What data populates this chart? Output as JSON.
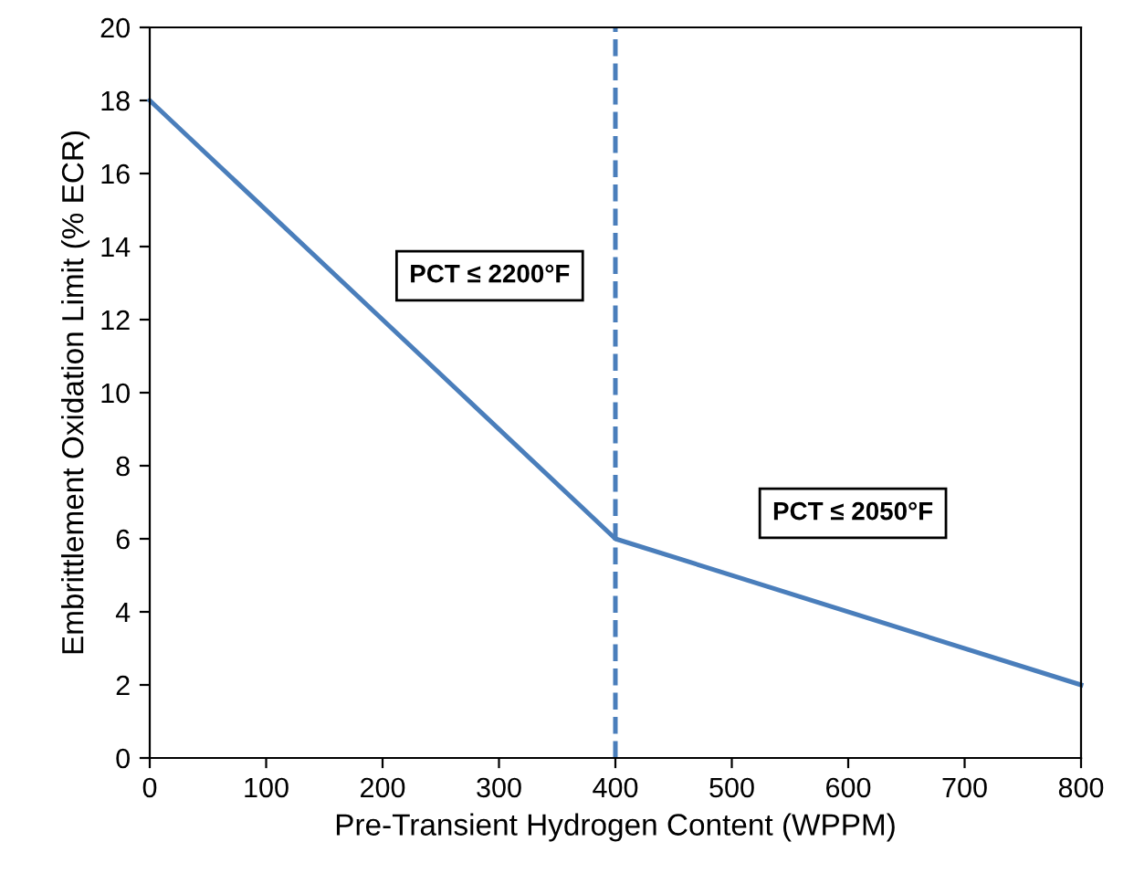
{
  "chart_data": {
    "type": "line",
    "xlabel": "Pre-Transient Hydrogen Content (WPPM)",
    "ylabel": "Embrittlement Oxidation Limit (% ECR)",
    "x": [
      0,
      400,
      800
    ],
    "series": [
      {
        "color": "#4a7ebb",
        "values": [
          18,
          6,
          2
        ]
      }
    ],
    "xlim": [
      0,
      800
    ],
    "xticks": [
      0,
      100,
      200,
      300,
      400,
      500,
      600,
      700,
      800
    ],
    "ylim": [
      0,
      20
    ],
    "yticks": [
      0,
      2,
      4,
      6,
      8,
      10,
      12,
      14,
      16,
      18,
      20
    ],
    "grid": false,
    "marker": "none",
    "line_style": "solid",
    "ref_lines": [
      {
        "axis": "x",
        "value": 400,
        "color": "#4a7ebb",
        "line_style": "dashed"
      }
    ],
    "annotations": [
      "PCT ≤ 2200°F",
      "PCT ≤ 2050°F"
    ]
  }
}
